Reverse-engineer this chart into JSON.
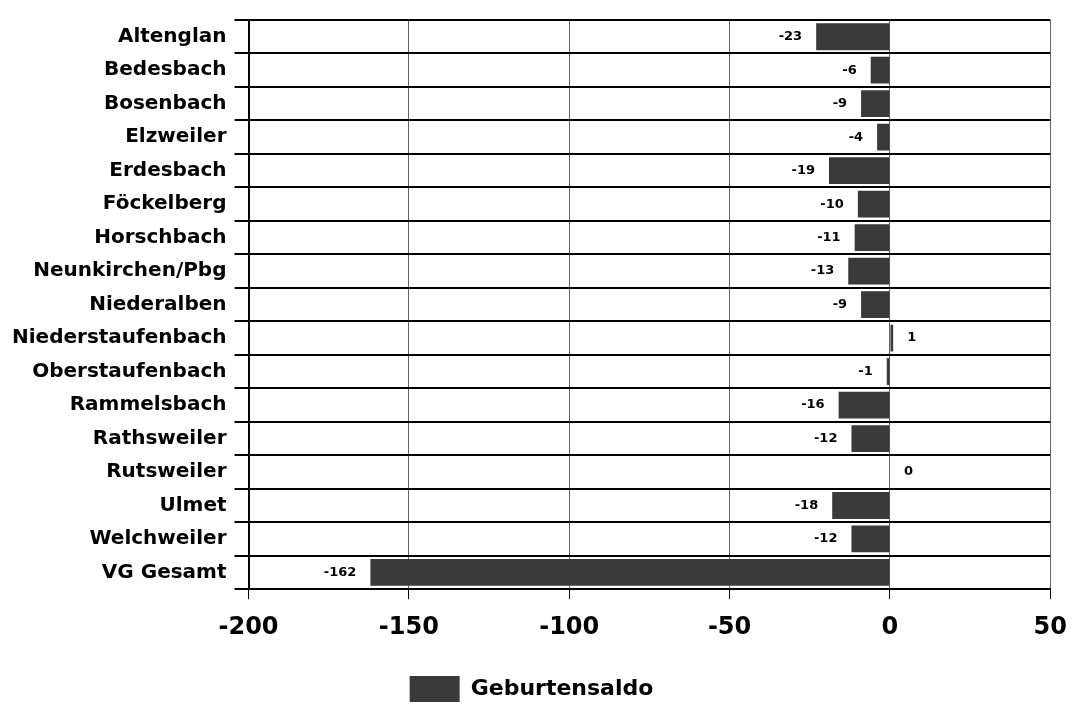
{
  "chart_data": {
    "type": "bar",
    "orientation": "horizontal",
    "categories": [
      "Altenglan",
      "Bedesbach",
      "Bosenbach",
      "Elzweiler",
      "Erdesbach",
      "Föckelberg",
      "Horschbach",
      "Neunkirchen/Pbg",
      "Niederalben",
      "Niederstaufenbach",
      "Oberstaufenbach",
      "Rammelsbach",
      "Rathsweiler",
      "Rutsweiler",
      "Ulmet",
      "Welchweiler",
      "VG Gesamt"
    ],
    "series": [
      {
        "name": "Geburtensaldo",
        "color": "#3a3a3a",
        "values": [
          -23,
          -6,
          -9,
          -4,
          -19,
          -10,
          -11,
          -13,
          -9,
          1,
          -1,
          -16,
          -12,
          0,
          -18,
          -12,
          -162
        ]
      }
    ],
    "xlim": [
      -200,
      50
    ],
    "xticks": [
      -200,
      -150,
      -100,
      -50,
      0,
      50
    ],
    "grid": true,
    "legend": "bottom",
    "data_labels": true
  }
}
